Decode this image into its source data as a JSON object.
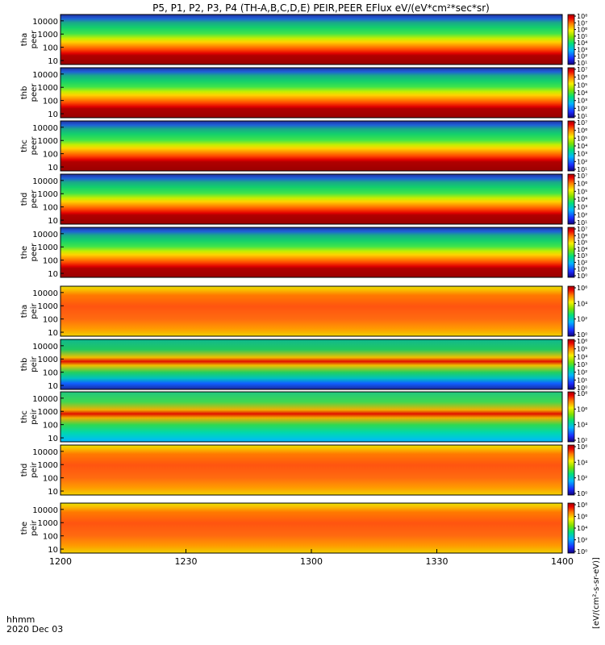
{
  "chart_data": {
    "type": "heatmap",
    "title": "P5, P1, P2, P3, P4 (TH-A,B,C,D,E) PEIR,PEER EFlux eV/(eV*cm²*sec*sr)",
    "xlabel": "hhmm",
    "date_label": "2020 Dec 03",
    "x_ticks": [
      "1200",
      "1230",
      "1300",
      "1330",
      "1400"
    ],
    "xlim": [
      "1200",
      "1400"
    ],
    "y_scale": "log",
    "ylim": [
      5,
      30000
    ],
    "y_ticks": [
      "10",
      "100",
      "1000",
      "10000"
    ],
    "colorbar_label": "[eV/(cm²-s-sr-eV)]",
    "panels": [
      {
        "probe": "tha",
        "species": "peer",
        "label_top": "tha",
        "label_bottom": "peer",
        "cbar_ticks": [
          "10¹",
          "10²",
          "10³",
          "10⁴",
          "10⁵",
          "10⁶",
          "10⁷",
          "10⁸"
        ],
        "cbar_range": [
          1,
          8
        ]
      },
      {
        "probe": "thb",
        "species": "peer",
        "label_top": "thb",
        "label_bottom": "peer",
        "cbar_ticks": [
          "10¹",
          "10²",
          "10³",
          "10⁴",
          "10⁵",
          "10⁶",
          "10⁷"
        ],
        "cbar_range": [
          1,
          7
        ]
      },
      {
        "probe": "thc",
        "species": "peer",
        "label_top": "thc",
        "label_bottom": "peer",
        "cbar_ticks": [
          "10¹",
          "10²",
          "10³",
          "10⁴",
          "10⁵",
          "10⁶",
          "10⁷"
        ],
        "cbar_range": [
          1,
          7
        ]
      },
      {
        "probe": "thd",
        "species": "peer",
        "label_top": "thd",
        "label_bottom": "peer",
        "cbar_ticks": [
          "10¹",
          "10²",
          "10³",
          "10⁴",
          "10⁵",
          "10⁶",
          "10⁷"
        ],
        "cbar_range": [
          1,
          7
        ]
      },
      {
        "probe": "the",
        "species": "peer",
        "label_top": "the",
        "label_bottom": "peer",
        "cbar_ticks": [
          "10⁰",
          "10¹",
          "10²",
          "10³",
          "10⁴",
          "10⁵",
          "10⁶",
          "10⁷"
        ],
        "cbar_range": [
          0,
          7
        ]
      },
      {
        "probe": "tha",
        "species": "peir",
        "label_top": "tha",
        "label_bottom": "peir",
        "cbar_ticks": [
          "10⁰",
          "10²",
          "10⁴",
          "10⁶"
        ],
        "cbar_range": [
          0,
          6
        ]
      },
      {
        "probe": "thb",
        "species": "peir",
        "label_top": "thb",
        "label_bottom": "peir",
        "cbar_ticks": [
          "10⁰",
          "10¹",
          "10²",
          "10³",
          "10⁴",
          "10⁵",
          "10⁶"
        ],
        "cbar_range": [
          0,
          6
        ]
      },
      {
        "probe": "thc",
        "species": "peir",
        "label_top": "thc",
        "label_bottom": "peir",
        "cbar_ticks": [
          "10²",
          "10⁴",
          "10⁶",
          "10⁸"
        ],
        "cbar_range": [
          1,
          8
        ]
      },
      {
        "probe": "thd",
        "species": "peir",
        "label_top": "thd",
        "label_bottom": "peir",
        "cbar_ticks": [
          "10⁰",
          "10²",
          "10⁴",
          "10⁶"
        ],
        "cbar_range": [
          0,
          6
        ]
      },
      {
        "probe": "the",
        "species": "peir",
        "label_top": "the",
        "label_bottom": "peir",
        "cbar_ticks": [
          "10⁰",
          "10²",
          "10⁴",
          "10⁶",
          "10⁸"
        ],
        "cbar_range": [
          0,
          8
        ]
      }
    ]
  }
}
